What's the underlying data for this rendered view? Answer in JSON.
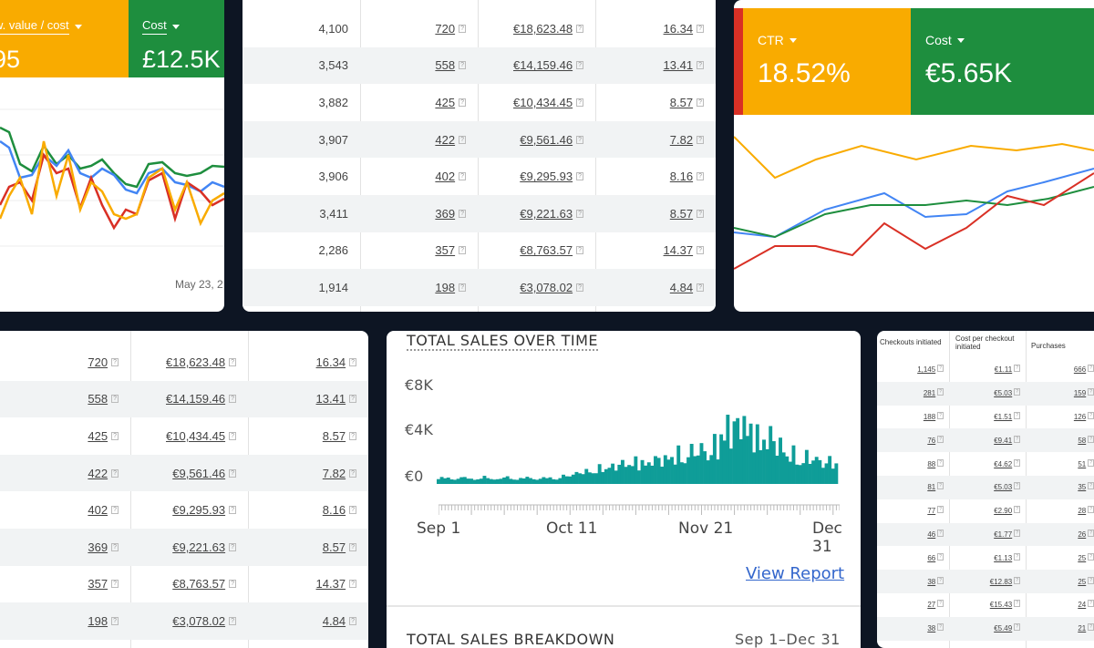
{
  "colors": {
    "orange": "#f9ab00",
    "green": "#1e8e3e",
    "red": "#d93025",
    "blue": "#4285f4",
    "teal": "#0f9d98",
    "bg": "#0d1523"
  },
  "panel_a": {
    "metric1": {
      "label": "w. value / cost",
      "value": "95"
    },
    "metric2": {
      "label": "Cost",
      "value": "£12.5K"
    },
    "date_label": "May 23, 2"
  },
  "panel_b": {
    "rows": [
      [
        "4,100",
        "720",
        "€18,623.48",
        "16.34"
      ],
      [
        "3,543",
        "558",
        "€14,159.46",
        "13.41"
      ],
      [
        "3,882",
        "425",
        "€10,434.45",
        "8.57"
      ],
      [
        "3,907",
        "422",
        "€9,561.46",
        "7.82"
      ],
      [
        "3,906",
        "402",
        "€9,295.93",
        "8.16"
      ],
      [
        "3,411",
        "369",
        "€9,221.63",
        "8.57"
      ],
      [
        "2,286",
        "357",
        "€8,763.57",
        "14.37"
      ],
      [
        "1,914",
        "198",
        "€3,078.02",
        "4.84"
      ]
    ]
  },
  "panel_c": {
    "metric1": {
      "label": "CTR",
      "value": "18.52%"
    },
    "metric2": {
      "label": "Cost",
      "value": "€5.65K"
    }
  },
  "panel_d": {
    "rows": [
      [
        "720",
        "€18,623.48",
        "16.34"
      ],
      [
        "558",
        "€14,159.46",
        "13.41"
      ],
      [
        "425",
        "€10,434.45",
        "8.57"
      ],
      [
        "422",
        "€9,561.46",
        "7.82"
      ],
      [
        "402",
        "€9,295.93",
        "8.16"
      ],
      [
        "369",
        "€9,221.63",
        "8.57"
      ],
      [
        "357",
        "€8,763.57",
        "14.37"
      ],
      [
        "198",
        "€3,078.02",
        "4.84"
      ]
    ]
  },
  "sales": {
    "title": "TOTAL SALES OVER TIME",
    "yticks": [
      "€8K",
      "€4K",
      "€0"
    ],
    "xticks": [
      "Sep 1",
      "Oct 11",
      "Nov 21",
      "Dec 31"
    ],
    "link": "View Report",
    "breakdown_title": "TOTAL SALES BREAKDOWN",
    "breakdown_range": "Sep 1–Dec 31"
  },
  "panel_f": {
    "headers": [
      "Checkouts initiated",
      "Cost per checkout initiated",
      "Purchases"
    ],
    "rows": [
      [
        "1,145",
        "€1.11",
        "666"
      ],
      [
        "281",
        "€5.03",
        "159"
      ],
      [
        "188",
        "€1.51",
        "126"
      ],
      [
        "76",
        "€9.41",
        "58"
      ],
      [
        "88",
        "€4.62",
        "51"
      ],
      [
        "81",
        "€5.03",
        "35"
      ],
      [
        "77",
        "€2.90",
        "28"
      ],
      [
        "46",
        "€1.77",
        "26"
      ],
      [
        "66",
        "€1.13",
        "25"
      ],
      [
        "38",
        "€12.83",
        "25"
      ],
      [
        "27",
        "€15.43",
        "24"
      ],
      [
        "38",
        "€5.49",
        "21"
      ]
    ]
  }
}
